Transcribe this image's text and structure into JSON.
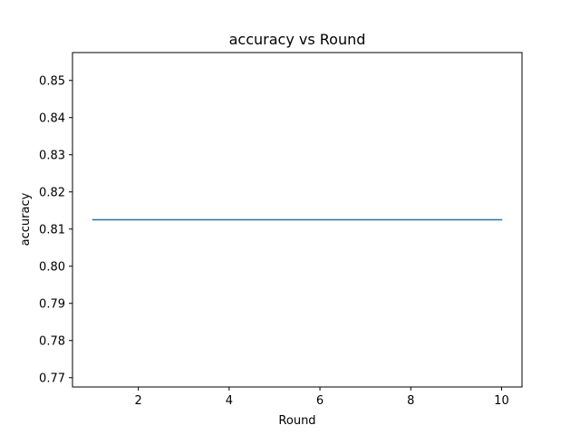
{
  "chart_data": {
    "type": "line",
    "title": "accuracy vs Round",
    "xlabel": "Round",
    "ylabel": "accuracy",
    "xlim": [
      0.55,
      10.45
    ],
    "ylim": [
      0.7675,
      0.8575
    ],
    "x_ticks": [
      2,
      4,
      6,
      8,
      10
    ],
    "y_ticks": [
      0.77,
      0.78,
      0.79,
      0.8,
      0.81,
      0.82,
      0.83,
      0.84,
      0.85
    ],
    "grid": false,
    "series": [
      {
        "color": "#1f77b4",
        "x": [
          1,
          2,
          3,
          4,
          5,
          6,
          7,
          8,
          9,
          10
        ],
        "y": [
          0.8125,
          0.8125,
          0.8125,
          0.8125,
          0.8125,
          0.8125,
          0.8125,
          0.8125,
          0.8125,
          0.8125
        ]
      }
    ]
  }
}
